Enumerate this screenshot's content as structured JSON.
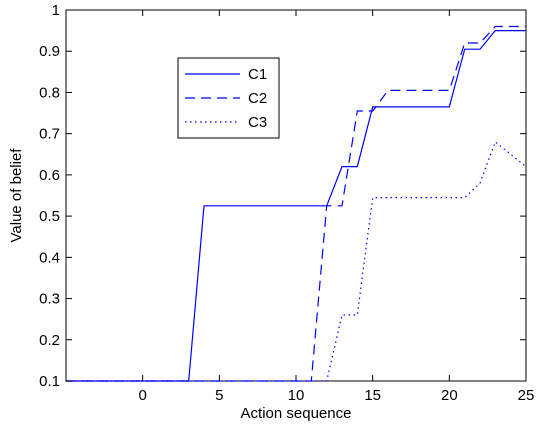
{
  "chart_data": {
    "type": "line",
    "title": "",
    "xlabel": "Action sequence",
    "ylabel": "Value of belief",
    "xlim": [
      -5,
      25
    ],
    "ylim": [
      0.1,
      1
    ],
    "xticks": [
      0,
      5,
      10,
      15,
      20,
      25
    ],
    "yticks": [
      0.1,
      0.2,
      0.3,
      0.4,
      0.5,
      0.6,
      0.7,
      0.8,
      0.9,
      1
    ],
    "xtick_labels": [
      "0",
      "5",
      "10",
      "15",
      "20",
      "25"
    ],
    "ytick_labels": [
      "0.1",
      "0.2",
      "0.3",
      "0.4",
      "0.5",
      "0.6",
      "0.7",
      "0.8",
      "0.9",
      "1"
    ],
    "legend_position": "upper-left",
    "grid": false,
    "series": [
      {
        "name": "C1",
        "color": "#0000ff",
        "linestyle": "solid",
        "points": [
          [
            -5,
            0.1
          ],
          [
            3,
            0.1
          ],
          [
            4,
            0.525
          ],
          [
            12,
            0.525
          ],
          [
            13,
            0.62
          ],
          [
            14,
            0.62
          ],
          [
            15,
            0.765
          ],
          [
            20,
            0.765
          ],
          [
            21,
            0.905
          ],
          [
            22,
            0.905
          ],
          [
            23,
            0.95
          ],
          [
            25,
            0.95
          ]
        ]
      },
      {
        "name": "C2",
        "color": "#0000ff",
        "linestyle": "dashed",
        "points": [
          [
            -5,
            0.1
          ],
          [
            11,
            0.1
          ],
          [
            12,
            0.525
          ],
          [
            13,
            0.525
          ],
          [
            14,
            0.755
          ],
          [
            15,
            0.755
          ],
          [
            16,
            0.805
          ],
          [
            20,
            0.805
          ],
          [
            21,
            0.92
          ],
          [
            22,
            0.92
          ],
          [
            23,
            0.96
          ],
          [
            25,
            0.96
          ]
        ]
      },
      {
        "name": "C3",
        "color": "#0000ff",
        "linestyle": "dotted",
        "points": [
          [
            -5,
            0.1
          ],
          [
            12,
            0.1
          ],
          [
            13,
            0.26
          ],
          [
            14,
            0.26
          ],
          [
            15,
            0.545
          ],
          [
            21,
            0.545
          ],
          [
            22,
            0.58
          ],
          [
            23,
            0.68
          ],
          [
            25,
            0.62
          ]
        ]
      }
    ]
  }
}
